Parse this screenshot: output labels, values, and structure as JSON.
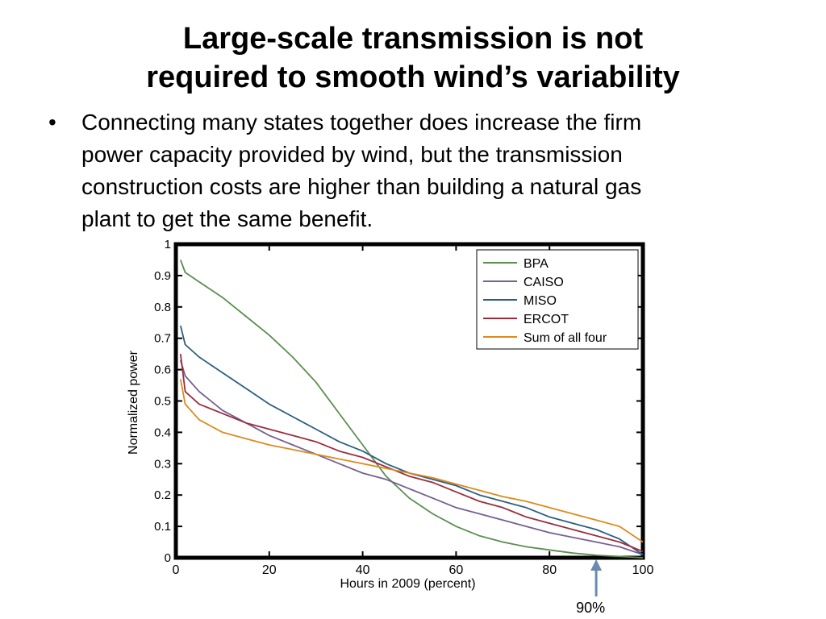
{
  "slide": {
    "title_line1": "Large-scale transmission is not",
    "title_line2": "required to smooth wind’s variability",
    "bullet_symbol": "•",
    "bullet_lines": [
      "Connecting many states together does increase the firm",
      "power capacity provided by wind, but the transmission",
      "construction costs are higher than building a natural gas",
      "plant to get the same benefit."
    ]
  },
  "chart_data": {
    "type": "line",
    "xlabel": "Hours in 2009 (percent)",
    "ylabel": "Normalized power",
    "xlim": [
      0,
      100
    ],
    "ylim": [
      0,
      1
    ],
    "xticks": [
      0,
      20,
      40,
      60,
      80,
      100
    ],
    "yticks": [
      0,
      0.1,
      0.2,
      0.3,
      0.4,
      0.5,
      0.6,
      0.7,
      0.8,
      0.9,
      1
    ],
    "ytick_labels": [
      "0",
      "0.1",
      "0.2",
      "0.3",
      "0.4",
      "0.5",
      "0.6",
      "0.7",
      "0.8",
      "0.9",
      "1"
    ],
    "grid": false,
    "legend_position": "top-right",
    "x": [
      1,
      2,
      5,
      10,
      15,
      20,
      25,
      30,
      35,
      40,
      45,
      50,
      55,
      60,
      65,
      70,
      75,
      80,
      85,
      90,
      95,
      100
    ],
    "series": [
      {
        "name": "BPA",
        "color": "#5a8f4e",
        "values": [
          0.95,
          0.91,
          0.88,
          0.83,
          0.77,
          0.71,
          0.64,
          0.56,
          0.46,
          0.36,
          0.26,
          0.19,
          0.14,
          0.1,
          0.07,
          0.05,
          0.035,
          0.025,
          0.015,
          0.008,
          0.004,
          0.0
        ]
      },
      {
        "name": "CAISO",
        "color": "#75608f",
        "values": [
          0.63,
          0.58,
          0.53,
          0.47,
          0.43,
          0.39,
          0.36,
          0.33,
          0.3,
          0.27,
          0.25,
          0.22,
          0.19,
          0.16,
          0.14,
          0.12,
          0.1,
          0.08,
          0.065,
          0.05,
          0.035,
          0.01
        ]
      },
      {
        "name": "MISO",
        "color": "#2b5f80",
        "values": [
          0.74,
          0.68,
          0.64,
          0.59,
          0.54,
          0.49,
          0.45,
          0.41,
          0.37,
          0.34,
          0.3,
          0.27,
          0.25,
          0.23,
          0.2,
          0.18,
          0.16,
          0.13,
          0.11,
          0.09,
          0.06,
          0.01
        ]
      },
      {
        "name": "ERCOT",
        "color": "#9a2e3f",
        "values": [
          0.65,
          0.53,
          0.49,
          0.46,
          0.43,
          0.41,
          0.39,
          0.37,
          0.34,
          0.32,
          0.29,
          0.26,
          0.24,
          0.21,
          0.18,
          0.16,
          0.13,
          0.11,
          0.09,
          0.07,
          0.05,
          0.02
        ]
      },
      {
        "name": "Sum of all four",
        "color": "#dd8a1e",
        "values": [
          0.57,
          0.49,
          0.44,
          0.4,
          0.38,
          0.36,
          0.345,
          0.33,
          0.315,
          0.3,
          0.285,
          0.27,
          0.255,
          0.235,
          0.215,
          0.195,
          0.18,
          0.16,
          0.14,
          0.12,
          0.1,
          0.05
        ]
      }
    ],
    "annotation": {
      "label": "90%",
      "x": 90,
      "arrow_color": "#6a8ab0"
    }
  }
}
